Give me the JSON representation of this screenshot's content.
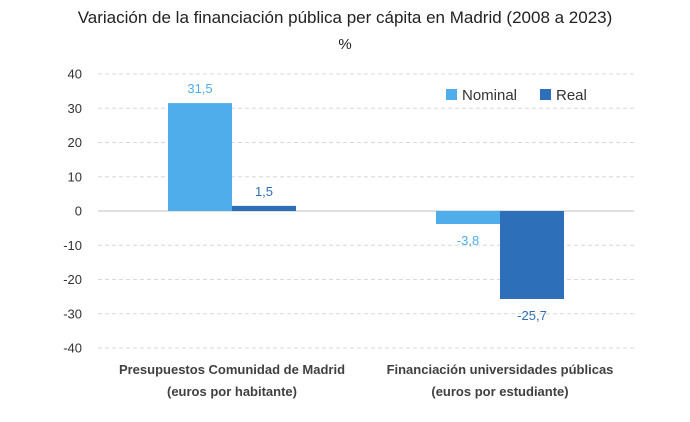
{
  "chart_data": {
    "type": "bar",
    "title": "Variación de la financiación pública per cápita en Madrid (2008 a 2023)",
    "subtitle": "%",
    "categories": [
      [
        "Presupuestos Comunidad de Madrid",
        "(euros por habitante)"
      ],
      [
        "Financiación universidades públicas",
        "(euros por estudiante)"
      ]
    ],
    "series": [
      {
        "name": "Nominal",
        "values": [
          31.5,
          -3.8
        ],
        "labels": [
          "31,5",
          "-3,8"
        ],
        "color": "#4EADEA"
      },
      {
        "name": "Real",
        "values": [
          1.5,
          -25.7
        ],
        "labels": [
          "1,5",
          "-25,7"
        ],
        "color": "#2E6FBA"
      }
    ],
    "ylim": [
      -40,
      40
    ],
    "yticks": [
      40,
      30,
      20,
      10,
      0,
      -10,
      -20,
      -30,
      -40
    ],
    "grid": "dashed-horizontal",
    "legend": "top-right"
  }
}
